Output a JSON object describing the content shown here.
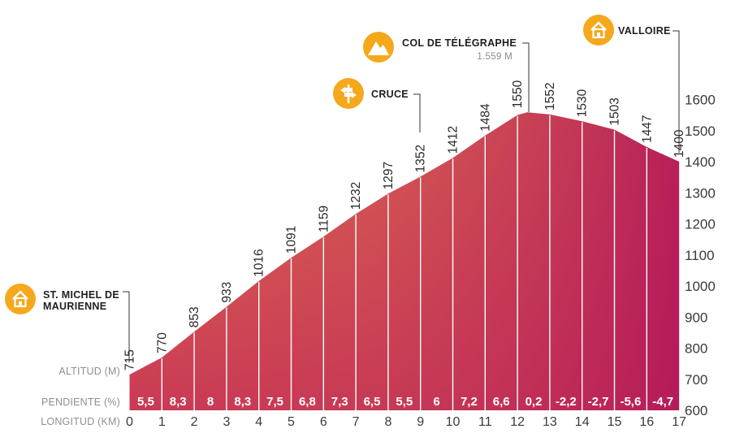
{
  "chart_data": {
    "type": "area",
    "x": [
      0,
      1,
      2,
      3,
      4,
      5,
      6,
      7,
      8,
      9,
      10,
      11,
      12,
      13,
      14,
      15,
      16,
      17
    ],
    "altitudes": [
      715,
      770,
      853,
      933,
      1016,
      1091,
      1159,
      1232,
      1297,
      1352,
      1412,
      1484,
      1550,
      1552,
      1530,
      1503,
      1447,
      1400
    ],
    "altitude_labels": [
      "715",
      "770",
      "853",
      "933",
      "1016",
      "1091",
      "1159",
      "1232",
      "1297",
      "1352",
      "1412",
      "1484",
      "1550",
      "1552",
      "1530",
      "1503",
      "1447",
      "1400"
    ],
    "peak": {
      "x": 12.3,
      "y": 1559
    },
    "gradients": [
      "5,5",
      "8,3",
      "8",
      "8,3",
      "7,5",
      "6,8",
      "7,3",
      "6,5",
      "5,5",
      "6",
      "7,2",
      "6,6",
      "0,2",
      "-2,2",
      "-2,7",
      "-5,6",
      "-4,7"
    ],
    "x_ticks": [
      "0",
      "1",
      "2",
      "3",
      "4",
      "5",
      "6",
      "7",
      "8",
      "9",
      "10",
      "11",
      "12",
      "13",
      "14",
      "15",
      "16",
      "17"
    ],
    "y_ticks": [
      600,
      700,
      800,
      900,
      1000,
      1100,
      1200,
      1300,
      1400,
      1500,
      1600
    ],
    "ylim": [
      600,
      1600
    ],
    "xlim": [
      0,
      17
    ],
    "row_labels": {
      "altitude": "ALTITUD (M)",
      "gradient": "PENDIENTE (%)",
      "distance": "LONGITUD (KM)"
    },
    "waypoints": [
      {
        "name_lines": [
          "ST. MICHEL DE",
          "MAURIENNE"
        ],
        "km": 0,
        "icon": "house-icon"
      },
      {
        "name_lines": [
          "CRUCE"
        ],
        "km": 9,
        "icon": "crossroad-sign-icon"
      },
      {
        "name_lines": [
          "COL DE TÉLÉGRAPHE"
        ],
        "sub": "1.559 M",
        "km": 12,
        "icon": "mountain-icon"
      },
      {
        "name_lines": [
          "VALLOIRE"
        ],
        "km": 17,
        "icon": "house-icon"
      }
    ],
    "colors": {
      "profile_top": "#de6d50",
      "profile_bottom": "#bf2856",
      "profile_right": "#b8205a",
      "icon": "#f5a81c",
      "divider": "#ffffff"
    }
  }
}
